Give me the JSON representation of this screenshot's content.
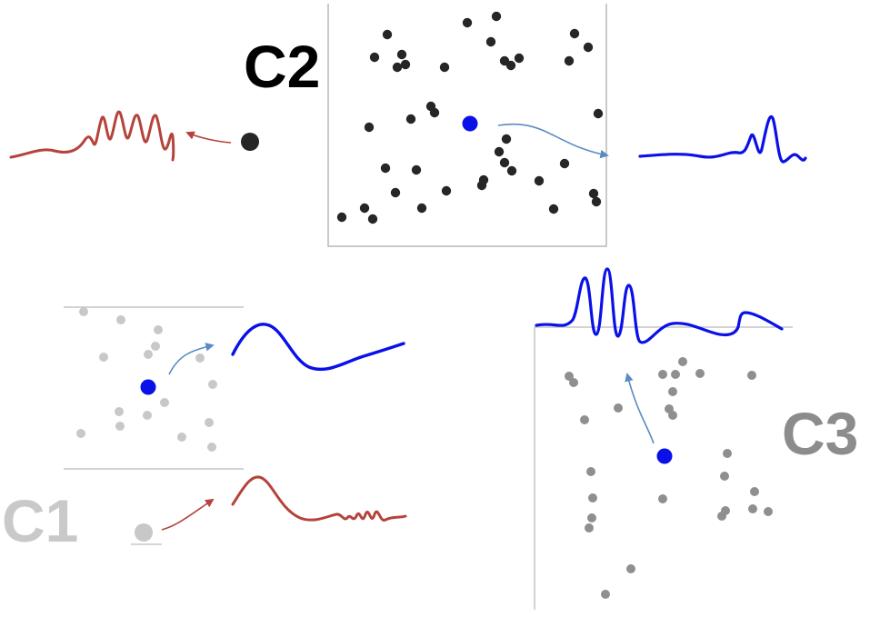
{
  "labels": {
    "c1": "C1",
    "c2": "C2",
    "c3": "C3"
  },
  "colors": {
    "c1_dots": "#c8c8c8",
    "c1_label": "#c9c9c9",
    "c2_dots": "#262626",
    "c2_label": "#000000",
    "c3_dots": "#8f8f8f",
    "c3_label": "#8c8c8c",
    "source": "#0a10e8",
    "blue_wave": "#0a10e8",
    "red_wave": "#b5433b",
    "blue_arrow": "#5b8bc4",
    "red_arrow": "#b5433b",
    "frame": "#b9b9b9"
  },
  "icons": {
    "source_dot": "filled-circle",
    "arrow": "curved-arrow"
  }
}
